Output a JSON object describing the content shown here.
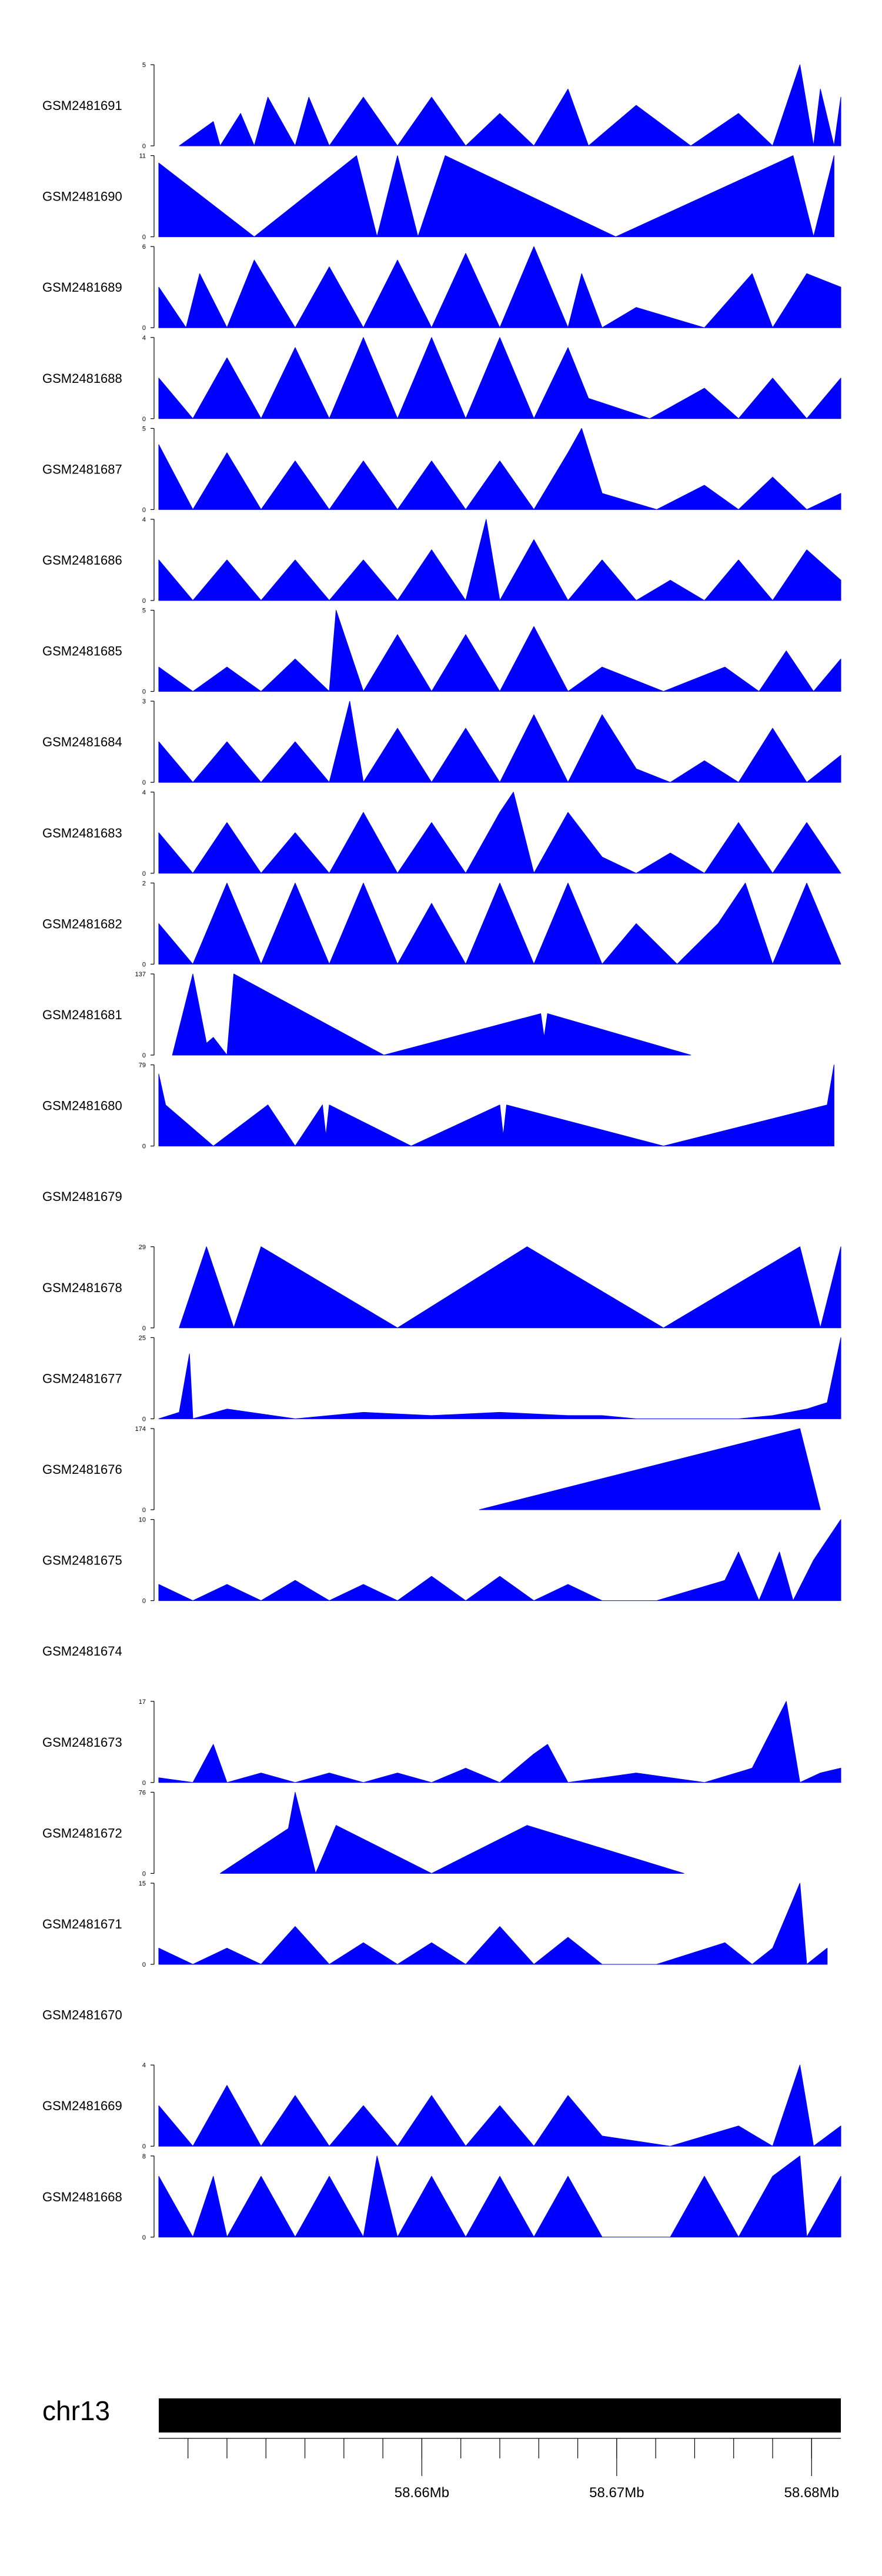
{
  "chart_data": {
    "type": "area",
    "title": "",
    "xlabel": "",
    "ylabel": "",
    "chromosome": "chr13",
    "xlim_mb": [
      58.6465,
      58.6815
    ],
    "genome_axis": {
      "major_ticks_mb": [
        58.66,
        58.67,
        58.68
      ],
      "major_tick_labels": [
        "58.66Mb",
        "58.67Mb",
        "58.68Mb"
      ],
      "minor_ticks_mb": [
        58.648,
        58.65,
        58.652,
        58.654,
        58.656,
        58.658,
        58.66,
        58.662,
        58.664,
        58.666,
        58.668,
        58.67,
        58.672,
        58.674,
        58.676,
        58.678,
        58.68
      ]
    },
    "fill_color": "#0000ff",
    "tracks": [
      {
        "name": "GSM2481691",
        "ymax": 5,
        "ticks": [
          "0",
          "5"
        ],
        "x": [
          0.03,
          0.08,
          0.09,
          0.12,
          0.14,
          0.16,
          0.2,
          0.22,
          0.25,
          0.3,
          0.35,
          0.4,
          0.45,
          0.5,
          0.55,
          0.6,
          0.63,
          0.7,
          0.78,
          0.85,
          0.9,
          0.94,
          0.96,
          0.97,
          0.99,
          1.0
        ],
        "y": [
          0,
          1.5,
          0,
          2,
          0,
          3,
          0,
          3,
          0,
          3,
          0,
          3,
          0,
          2,
          0,
          3.5,
          0,
          2.5,
          0,
          2,
          0,
          5,
          0,
          3.5,
          0,
          3
        ]
      },
      {
        "name": "GSM2481690",
        "ymax": 11,
        "ticks": [
          "0",
          "11"
        ],
        "x": [
          0.0,
          0.14,
          0.29,
          0.32,
          0.35,
          0.38,
          0.42,
          0.67,
          0.93,
          0.96,
          0.99
        ],
        "y": [
          10,
          0,
          11,
          0,
          11,
          0,
          11,
          0,
          11,
          0,
          11
        ]
      },
      {
        "name": "GSM2481689",
        "ymax": 6,
        "ticks": [
          "0",
          "6"
        ],
        "x": [
          0.0,
          0.04,
          0.06,
          0.1,
          0.14,
          0.2,
          0.25,
          0.3,
          0.35,
          0.4,
          0.45,
          0.5,
          0.55,
          0.6,
          0.62,
          0.65,
          0.7,
          0.8,
          0.87,
          0.9,
          0.95,
          1.0
        ],
        "y": [
          3,
          0,
          4,
          0,
          5,
          0,
          4.5,
          0,
          5,
          0,
          5.5,
          0,
          6,
          0,
          4,
          0,
          1.5,
          0,
          4,
          0,
          4,
          3
        ]
      },
      {
        "name": "GSM2481688",
        "ymax": 4,
        "ticks": [
          "0",
          "4"
        ],
        "x": [
          0.0,
          0.05,
          0.1,
          0.15,
          0.2,
          0.25,
          0.3,
          0.35,
          0.4,
          0.45,
          0.5,
          0.55,
          0.6,
          0.63,
          0.72,
          0.8,
          0.85,
          0.9,
          0.95,
          1.0
        ],
        "y": [
          2,
          0,
          3,
          0,
          3.5,
          0,
          4,
          0,
          4,
          0,
          4,
          0,
          3.5,
          1,
          0,
          1.5,
          0,
          2,
          0,
          2
        ]
      },
      {
        "name": "GSM2481687",
        "ymax": 5,
        "ticks": [
          "0",
          "5"
        ],
        "x": [
          0.0,
          0.05,
          0.1,
          0.15,
          0.2,
          0.25,
          0.3,
          0.35,
          0.4,
          0.45,
          0.5,
          0.55,
          0.6,
          0.62,
          0.65,
          0.73,
          0.8,
          0.85,
          0.9,
          0.95,
          1.0
        ],
        "y": [
          4,
          0,
          3.5,
          0,
          3,
          0,
          3,
          0,
          3,
          0,
          3,
          0,
          3.5,
          5,
          1,
          0,
          1.5,
          0,
          2,
          0,
          1
        ]
      },
      {
        "name": "GSM2481686",
        "ymax": 4,
        "ticks": [
          "0",
          "4"
        ],
        "x": [
          0.0,
          0.05,
          0.1,
          0.15,
          0.2,
          0.25,
          0.3,
          0.35,
          0.4,
          0.45,
          0.48,
          0.5,
          0.55,
          0.6,
          0.65,
          0.7,
          0.75,
          0.8,
          0.85,
          0.9,
          0.95,
          1.0
        ],
        "y": [
          2,
          0,
          2,
          0,
          2,
          0,
          2,
          0,
          2.5,
          0,
          4,
          0,
          3,
          0,
          2,
          0,
          1,
          0,
          2,
          0,
          2.5,
          1
        ]
      },
      {
        "name": "GSM2481685",
        "ymax": 5,
        "ticks": [
          "0",
          "5"
        ],
        "x": [
          0.0,
          0.05,
          0.1,
          0.15,
          0.2,
          0.25,
          0.26,
          0.3,
          0.35,
          0.4,
          0.45,
          0.5,
          0.55,
          0.6,
          0.65,
          0.74,
          0.83,
          0.88,
          0.92,
          0.96,
          1.0
        ],
        "y": [
          1.5,
          0,
          1.5,
          0,
          2,
          0,
          5,
          0,
          3.5,
          0,
          3.5,
          0,
          4,
          0,
          1.5,
          0,
          1.5,
          0,
          2.5,
          0,
          2
        ]
      },
      {
        "name": "GSM2481684",
        "ymax": 3,
        "ticks": [
          "0",
          "3"
        ],
        "x": [
          0.0,
          0.05,
          0.1,
          0.15,
          0.2,
          0.25,
          0.28,
          0.3,
          0.35,
          0.4,
          0.45,
          0.5,
          0.55,
          0.6,
          0.65,
          0.7,
          0.75,
          0.8,
          0.85,
          0.9,
          0.95,
          1.0
        ],
        "y": [
          1.5,
          0,
          1.5,
          0,
          1.5,
          0,
          3,
          0,
          2,
          0,
          2,
          0,
          2.5,
          0,
          2.5,
          0.5,
          0,
          0.8,
          0,
          2,
          0,
          1
        ]
      },
      {
        "name": "GSM2481683",
        "ymax": 4,
        "ticks": [
          "0",
          "4"
        ],
        "x": [
          0.0,
          0.05,
          0.1,
          0.15,
          0.2,
          0.25,
          0.3,
          0.35,
          0.4,
          0.45,
          0.5,
          0.52,
          0.55,
          0.6,
          0.65,
          0.7,
          0.75,
          0.8,
          0.85,
          0.9,
          0.95,
          1.0
        ],
        "y": [
          2,
          0,
          2.5,
          0,
          2,
          0,
          3,
          0,
          2.5,
          0,
          3,
          4,
          0,
          3,
          0.8,
          0,
          1,
          0,
          2.5,
          0,
          2.5,
          0
        ]
      },
      {
        "name": "GSM2481682",
        "ymax": 2,
        "ticks": [
          "0",
          "2"
        ],
        "x": [
          0.0,
          0.05,
          0.1,
          0.15,
          0.2,
          0.25,
          0.3,
          0.35,
          0.4,
          0.45,
          0.5,
          0.55,
          0.6,
          0.65,
          0.7,
          0.76,
          0.82,
          0.86,
          0.9,
          0.95,
          1.0
        ],
        "y": [
          1,
          0,
          2,
          0,
          2,
          0,
          2,
          0,
          1.5,
          0,
          2,
          0,
          2,
          0,
          1,
          0,
          1,
          2,
          0,
          2,
          0
        ]
      },
      {
        "name": "GSM2481681",
        "ymax": 137,
        "ticks": [
          "0",
          "137"
        ],
        "x": [
          0.02,
          0.05,
          0.07,
          0.08,
          0.1,
          0.11,
          0.33,
          0.56,
          0.565,
          0.57,
          0.78
        ],
        "y": [
          0,
          137,
          20,
          30,
          0,
          137,
          0,
          70,
          30,
          70,
          0
        ]
      },
      {
        "name": "GSM2481680",
        "ymax": 79,
        "ticks": [
          "0",
          "79"
        ],
        "x": [
          0.0,
          0.01,
          0.08,
          0.16,
          0.2,
          0.24,
          0.245,
          0.25,
          0.37,
          0.5,
          0.505,
          0.51,
          0.74,
          0.98,
          0.99
        ],
        "y": [
          70,
          40,
          0,
          40,
          0,
          40,
          10,
          40,
          0,
          40,
          10,
          40,
          0,
          40,
          79
        ]
      },
      {
        "name": "GSM2481679",
        "ymax": null,
        "ticks": [],
        "x": [],
        "y": []
      },
      {
        "name": "GSM2481678",
        "ymax": 29,
        "ticks": [
          "0",
          "29"
        ],
        "x": [
          0.03,
          0.07,
          0.11,
          0.15,
          0.35,
          0.54,
          0.74,
          0.94,
          0.97,
          1.0
        ],
        "y": [
          0,
          29,
          0,
          29,
          0,
          29,
          0,
          29,
          0,
          29
        ]
      },
      {
        "name": "GSM2481677",
        "ymax": 25,
        "ticks": [
          "0",
          "25"
        ],
        "x": [
          0.0,
          0.03,
          0.045,
          0.05,
          0.1,
          0.2,
          0.3,
          0.4,
          0.5,
          0.6,
          0.65,
          0.7,
          0.85,
          0.9,
          0.95,
          0.98,
          1.0
        ],
        "y": [
          0,
          2,
          20,
          0,
          3,
          0,
          2,
          1,
          2,
          1,
          1,
          0,
          0,
          1,
          3,
          5,
          25
        ]
      },
      {
        "name": "GSM2481676",
        "ymax": 174,
        "ticks": [
          "0",
          "174"
        ],
        "x": [
          0.47,
          0.94,
          0.97
        ],
        "y": [
          0,
          174,
          0
        ]
      },
      {
        "name": "GSM2481675",
        "ymax": 10,
        "ticks": [
          "0",
          "10"
        ],
        "x": [
          0.0,
          0.05,
          0.1,
          0.15,
          0.2,
          0.25,
          0.3,
          0.35,
          0.4,
          0.45,
          0.5,
          0.55,
          0.6,
          0.65,
          0.73,
          0.83,
          0.85,
          0.88,
          0.91,
          0.93,
          0.96,
          1.0
        ],
        "y": [
          2,
          0,
          2,
          0,
          2.5,
          0,
          2,
          0,
          3,
          0,
          3,
          0,
          2,
          0,
          0,
          2.5,
          6,
          0,
          6,
          0,
          5,
          10
        ]
      },
      {
        "name": "GSM2481674",
        "ymax": null,
        "ticks": [],
        "x": [],
        "y": []
      },
      {
        "name": "GSM2481673",
        "ymax": 17,
        "ticks": [
          "0",
          "17"
        ],
        "x": [
          0.0,
          0.05,
          0.08,
          0.1,
          0.15,
          0.2,
          0.25,
          0.3,
          0.35,
          0.4,
          0.45,
          0.5,
          0.55,
          0.57,
          0.6,
          0.7,
          0.8,
          0.87,
          0.92,
          0.94,
          0.97,
          1.0
        ],
        "y": [
          1,
          0,
          8,
          0,
          2,
          0,
          2,
          0,
          2,
          0,
          3,
          0,
          6,
          8,
          0,
          2,
          0,
          3,
          17,
          0,
          2,
          3
        ]
      },
      {
        "name": "GSM2481672",
        "ymax": 76,
        "ticks": [
          "0",
          "76"
        ],
        "x": [
          0.09,
          0.19,
          0.2,
          0.23,
          0.26,
          0.4,
          0.54,
          0.77
        ],
        "y": [
          0,
          42,
          76,
          0,
          45,
          0,
          45,
          0
        ]
      },
      {
        "name": "GSM2481671",
        "ymax": 15,
        "ticks": [
          "0",
          "15"
        ],
        "x": [
          0.0,
          0.05,
          0.1,
          0.15,
          0.2,
          0.25,
          0.3,
          0.35,
          0.4,
          0.45,
          0.5,
          0.55,
          0.6,
          0.65,
          0.73,
          0.83,
          0.87,
          0.9,
          0.94,
          0.95,
          0.98
        ],
        "y": [
          3,
          0,
          3,
          0,
          7,
          0,
          4,
          0,
          4,
          0,
          7,
          0,
          5,
          0,
          0,
          4,
          0,
          3,
          15,
          0,
          3
        ]
      },
      {
        "name": "GSM2481670",
        "ymax": null,
        "ticks": [],
        "x": [],
        "y": []
      },
      {
        "name": "GSM2481669",
        "ymax": 4,
        "ticks": [
          "0",
          "4"
        ],
        "x": [
          0.0,
          0.05,
          0.1,
          0.15,
          0.2,
          0.25,
          0.3,
          0.35,
          0.4,
          0.45,
          0.5,
          0.55,
          0.6,
          0.65,
          0.75,
          0.85,
          0.9,
          0.94,
          0.96,
          1.0
        ],
        "y": [
          2,
          0,
          3,
          0,
          2.5,
          0,
          2,
          0,
          2.5,
          0,
          2,
          0,
          2.5,
          0.5,
          0,
          1,
          0,
          4,
          0,
          1
        ]
      },
      {
        "name": "GSM2481668",
        "ymax": 8,
        "ticks": [
          "0",
          "8"
        ],
        "x": [
          0.0,
          0.05,
          0.08,
          0.1,
          0.15,
          0.2,
          0.25,
          0.3,
          0.32,
          0.35,
          0.4,
          0.45,
          0.5,
          0.55,
          0.6,
          0.65,
          0.75,
          0.8,
          0.85,
          0.9,
          0.94,
          0.95,
          1.0
        ],
        "y": [
          6,
          0,
          6,
          0,
          6,
          0,
          6,
          0,
          8,
          0,
          6,
          0,
          6,
          0,
          6,
          0,
          0,
          6,
          0,
          6,
          8,
          0,
          6
        ]
      }
    ]
  }
}
